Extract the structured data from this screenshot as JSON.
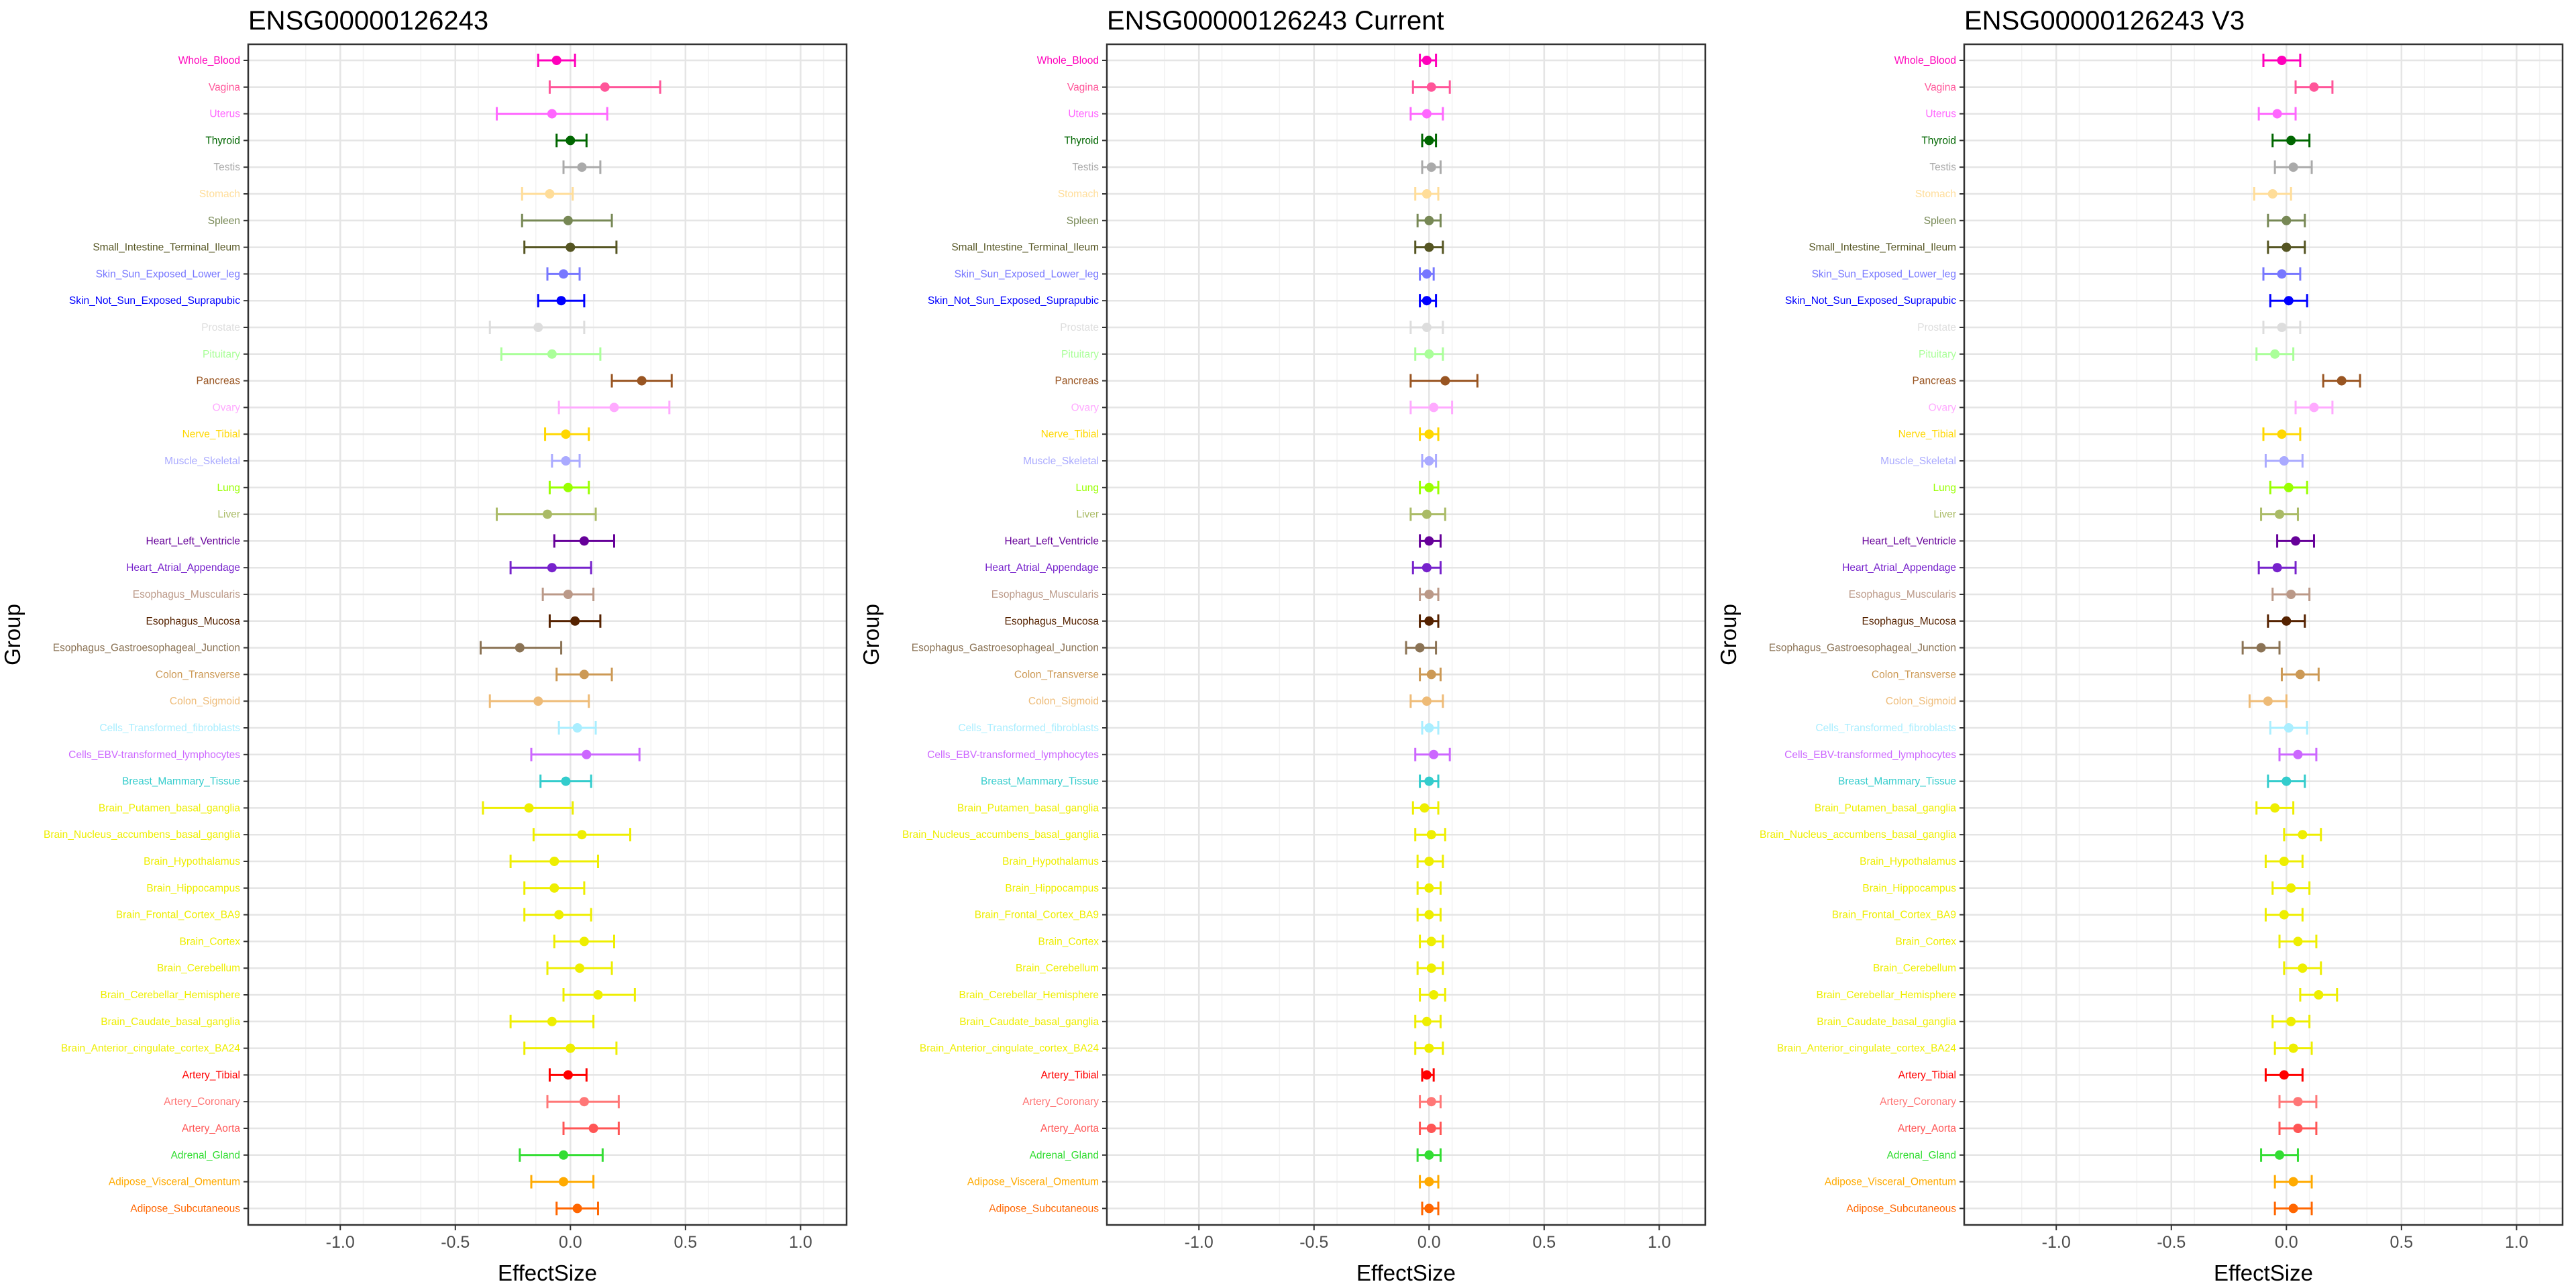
{
  "chart_data": {
    "type": "forest",
    "xlabel": "EffectSize",
    "ylabel": "Group",
    "xlim": [
      -1.4,
      1.2
    ],
    "x_ticks": [
      -1.0,
      -0.5,
      0.0,
      0.5,
      1.0
    ],
    "x_tick_labels": [
      "-1.0",
      "-0.5",
      "0.0",
      "0.5",
      "1.0"
    ],
    "grid": true,
    "groups": [
      {
        "name": "Whole_Blood",
        "color": "#FF00BB"
      },
      {
        "name": "Vagina",
        "color": "#FF5599"
      },
      {
        "name": "Uterus",
        "color": "#FF66FF"
      },
      {
        "name": "Thyroid",
        "color": "#006600"
      },
      {
        "name": "Testis",
        "color": "#AAAAAA"
      },
      {
        "name": "Stomach",
        "color": "#FFDD99"
      },
      {
        "name": "Spleen",
        "color": "#778855"
      },
      {
        "name": "Small_Intestine_Terminal_Ileum",
        "color": "#555522"
      },
      {
        "name": "Skin_Sun_Exposed_Lower_leg",
        "color": "#7777FF"
      },
      {
        "name": "Skin_Not_Sun_Exposed_Suprapubic",
        "color": "#0000FF"
      },
      {
        "name": "Prostate",
        "color": "#DDDDDD"
      },
      {
        "name": "Pituitary",
        "color": "#AAFF99"
      },
      {
        "name": "Pancreas",
        "color": "#995522"
      },
      {
        "name": "Ovary",
        "color": "#FFAAFF"
      },
      {
        "name": "Nerve_Tibial",
        "color": "#FFD700"
      },
      {
        "name": "Muscle_Skeletal",
        "color": "#AAAAFF"
      },
      {
        "name": "Lung",
        "color": "#99FF00"
      },
      {
        "name": "Liver",
        "color": "#AABB66"
      },
      {
        "name": "Heart_Left_Ventricle",
        "color": "#660099"
      },
      {
        "name": "Heart_Atrial_Appendage",
        "color": "#7722CC"
      },
      {
        "name": "Esophagus_Muscularis",
        "color": "#BB9988"
      },
      {
        "name": "Esophagus_Mucosa",
        "color": "#552200"
      },
      {
        "name": "Esophagus_Gastroesophageal_Junction",
        "color": "#8B7355"
      },
      {
        "name": "Colon_Transverse",
        "color": "#CC9955"
      },
      {
        "name": "Colon_Sigmoid",
        "color": "#EEBB77"
      },
      {
        "name": "Cells_Transformed_fibroblasts",
        "color": "#AAEEFF"
      },
      {
        "name": "Cells_EBV-transformed_lymphocytes",
        "color": "#CC66FF"
      },
      {
        "name": "Breast_Mammary_Tissue",
        "color": "#33CCCC"
      },
      {
        "name": "Brain_Putamen_basal_ganglia",
        "color": "#EEEE00"
      },
      {
        "name": "Brain_Nucleus_accumbens_basal_ganglia",
        "color": "#EEEE00"
      },
      {
        "name": "Brain_Hypothalamus",
        "color": "#EEEE00"
      },
      {
        "name": "Brain_Hippocampus",
        "color": "#EEEE00"
      },
      {
        "name": "Brain_Frontal_Cortex_BA9",
        "color": "#EEEE00"
      },
      {
        "name": "Brain_Cortex",
        "color": "#EEEE00"
      },
      {
        "name": "Brain_Cerebellum",
        "color": "#EEEE00"
      },
      {
        "name": "Brain_Cerebellar_Hemisphere",
        "color": "#EEEE00"
      },
      {
        "name": "Brain_Caudate_basal_ganglia",
        "color": "#EEEE00"
      },
      {
        "name": "Brain_Anterior_cingulate_cortex_BA24",
        "color": "#EEEE00"
      },
      {
        "name": "Artery_Tibial",
        "color": "#FF0000"
      },
      {
        "name": "Artery_Coronary",
        "color": "#FF7777"
      },
      {
        "name": "Artery_Aorta",
        "color": "#FF5555"
      },
      {
        "name": "Adrenal_Gland",
        "color": "#33DD33"
      },
      {
        "name": "Adipose_Visceral_Omentum",
        "color": "#FFAA00"
      },
      {
        "name": "Adipose_Subcutaneous",
        "color": "#FF6600"
      }
    ],
    "panels": [
      {
        "title": "ENSG00000126243",
        "effect": [
          -0.06,
          0.15,
          -0.08,
          0.0,
          0.05,
          -0.09,
          -0.01,
          0.0,
          -0.03,
          -0.04,
          -0.14,
          -0.08,
          0.31,
          0.19,
          -0.02,
          -0.02,
          -0.01,
          -0.1,
          0.06,
          -0.08,
          -0.01,
          0.02,
          -0.22,
          0.06,
          -0.14,
          0.03,
          0.07,
          -0.02,
          -0.18,
          0.05,
          -0.07,
          -0.07,
          -0.05,
          0.06,
          0.04,
          0.12,
          -0.08,
          0.0,
          -0.01,
          0.06,
          0.1,
          -0.03,
          -0.03,
          0.03
        ],
        "lower": [
          -0.14,
          -0.09,
          -0.32,
          -0.06,
          -0.03,
          -0.21,
          -0.21,
          -0.2,
          -0.1,
          -0.14,
          -0.35,
          -0.3,
          0.18,
          -0.05,
          -0.11,
          -0.08,
          -0.09,
          -0.32,
          -0.07,
          -0.26,
          -0.12,
          -0.09,
          -0.39,
          -0.06,
          -0.35,
          -0.05,
          -0.17,
          -0.13,
          -0.38,
          -0.16,
          -0.26,
          -0.2,
          -0.2,
          -0.07,
          -0.1,
          -0.03,
          -0.26,
          -0.2,
          -0.09,
          -0.1,
          -0.03,
          -0.22,
          -0.17,
          -0.06
        ],
        "upper": [
          0.02,
          0.39,
          0.16,
          0.07,
          0.13,
          0.01,
          0.18,
          0.2,
          0.04,
          0.06,
          0.06,
          0.13,
          0.44,
          0.43,
          0.08,
          0.04,
          0.08,
          0.11,
          0.19,
          0.09,
          0.1,
          0.13,
          -0.04,
          0.18,
          0.08,
          0.11,
          0.3,
          0.09,
          0.01,
          0.26,
          0.12,
          0.06,
          0.09,
          0.19,
          0.18,
          0.28,
          0.1,
          0.2,
          0.07,
          0.21,
          0.21,
          0.14,
          0.1,
          0.12
        ]
      },
      {
        "title": "ENSG00000126243 Current",
        "effect": [
          -0.01,
          0.01,
          -0.01,
          0.0,
          0.01,
          -0.01,
          0.0,
          0.0,
          -0.01,
          -0.01,
          -0.01,
          0.0,
          0.07,
          0.02,
          0.0,
          0.0,
          0.0,
          -0.01,
          0.0,
          -0.01,
          0.0,
          0.0,
          -0.04,
          0.01,
          -0.01,
          0.0,
          0.02,
          0.0,
          -0.02,
          0.01,
          0.0,
          0.0,
          0.0,
          0.01,
          0.01,
          0.02,
          -0.01,
          0.0,
          -0.01,
          0.01,
          0.01,
          0.0,
          0.0,
          0.0
        ],
        "lower": [
          -0.04,
          -0.07,
          -0.08,
          -0.03,
          -0.03,
          -0.06,
          -0.05,
          -0.06,
          -0.04,
          -0.04,
          -0.08,
          -0.06,
          -0.08,
          -0.08,
          -0.04,
          -0.03,
          -0.04,
          -0.08,
          -0.04,
          -0.07,
          -0.04,
          -0.04,
          -0.1,
          -0.04,
          -0.08,
          -0.03,
          -0.06,
          -0.04,
          -0.07,
          -0.06,
          -0.05,
          -0.05,
          -0.05,
          -0.04,
          -0.05,
          -0.04,
          -0.06,
          -0.06,
          -0.03,
          -0.04,
          -0.04,
          -0.05,
          -0.04,
          -0.03
        ],
        "upper": [
          0.03,
          0.09,
          0.06,
          0.03,
          0.05,
          0.04,
          0.05,
          0.06,
          0.02,
          0.03,
          0.06,
          0.06,
          0.21,
          0.1,
          0.04,
          0.03,
          0.04,
          0.07,
          0.05,
          0.05,
          0.04,
          0.04,
          0.03,
          0.05,
          0.06,
          0.04,
          0.09,
          0.04,
          0.04,
          0.07,
          0.06,
          0.05,
          0.05,
          0.06,
          0.06,
          0.07,
          0.05,
          0.06,
          0.02,
          0.05,
          0.05,
          0.05,
          0.04,
          0.04
        ]
      },
      {
        "title": "ENSG00000126243 V3",
        "effect": [
          -0.02,
          0.12,
          -0.04,
          0.02,
          0.03,
          -0.06,
          0.0,
          0.0,
          -0.02,
          0.01,
          -0.02,
          -0.05,
          0.24,
          0.12,
          -0.02,
          -0.01,
          0.01,
          -0.03,
          0.04,
          -0.04,
          0.02,
          0.0,
          -0.11,
          0.06,
          -0.08,
          0.01,
          0.05,
          0.0,
          -0.05,
          0.07,
          -0.01,
          0.02,
          -0.01,
          0.05,
          0.07,
          0.14,
          0.02,
          0.03,
          -0.01,
          0.05,
          0.05,
          -0.03,
          0.03,
          0.03
        ]
      }
    ]
  }
}
